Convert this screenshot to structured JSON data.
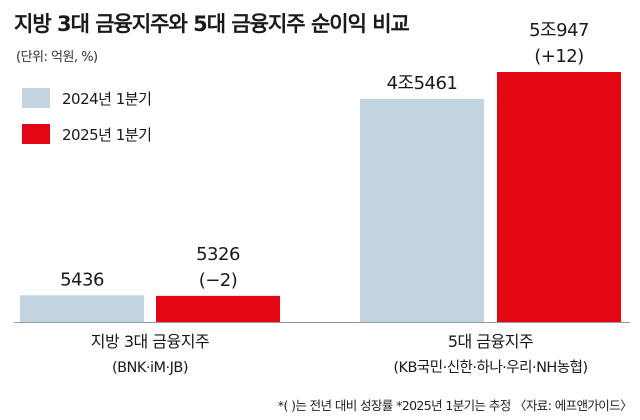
{
  "header": {
    "title": "지방 3대 금융지주와 5대 금융지주 순이익 비교",
    "unit": "(단위: 억원, %)"
  },
  "footer": {
    "note": "*( )는 전년 대비 성장률 *2025년 1분기는 추정 〈자료: 에프앤가이드〉"
  },
  "chart_data": {
    "type": "bar",
    "title": "지방 3대 금융지주와 5대 금융지주 순이익 비교",
    "unit": "(단위: 억원, %)",
    "categories": [
      {
        "name": "지방 3대 금융지주",
        "sub": "(BNK·iM·JB)"
      },
      {
        "name": "5대 금융지주",
        "sub": "(KB국민·신한·하나·우리·NH농협)"
      }
    ],
    "series": [
      {
        "name": "2024년 1분기",
        "color": "#c1d4e0",
        "values": [
          5436,
          45461
        ],
        "labels": [
          "5436",
          "4조5461"
        ]
      },
      {
        "name": "2025년 1분기",
        "color": "#e30613",
        "values": [
          5326,
          50947
        ],
        "labels": [
          "5326",
          "5조947"
        ],
        "growth": [
          "(−2)",
          "(+12)"
        ]
      }
    ],
    "legend_position": "top-left",
    "grid": false,
    "ylim": [
      0,
      50947
    ]
  }
}
